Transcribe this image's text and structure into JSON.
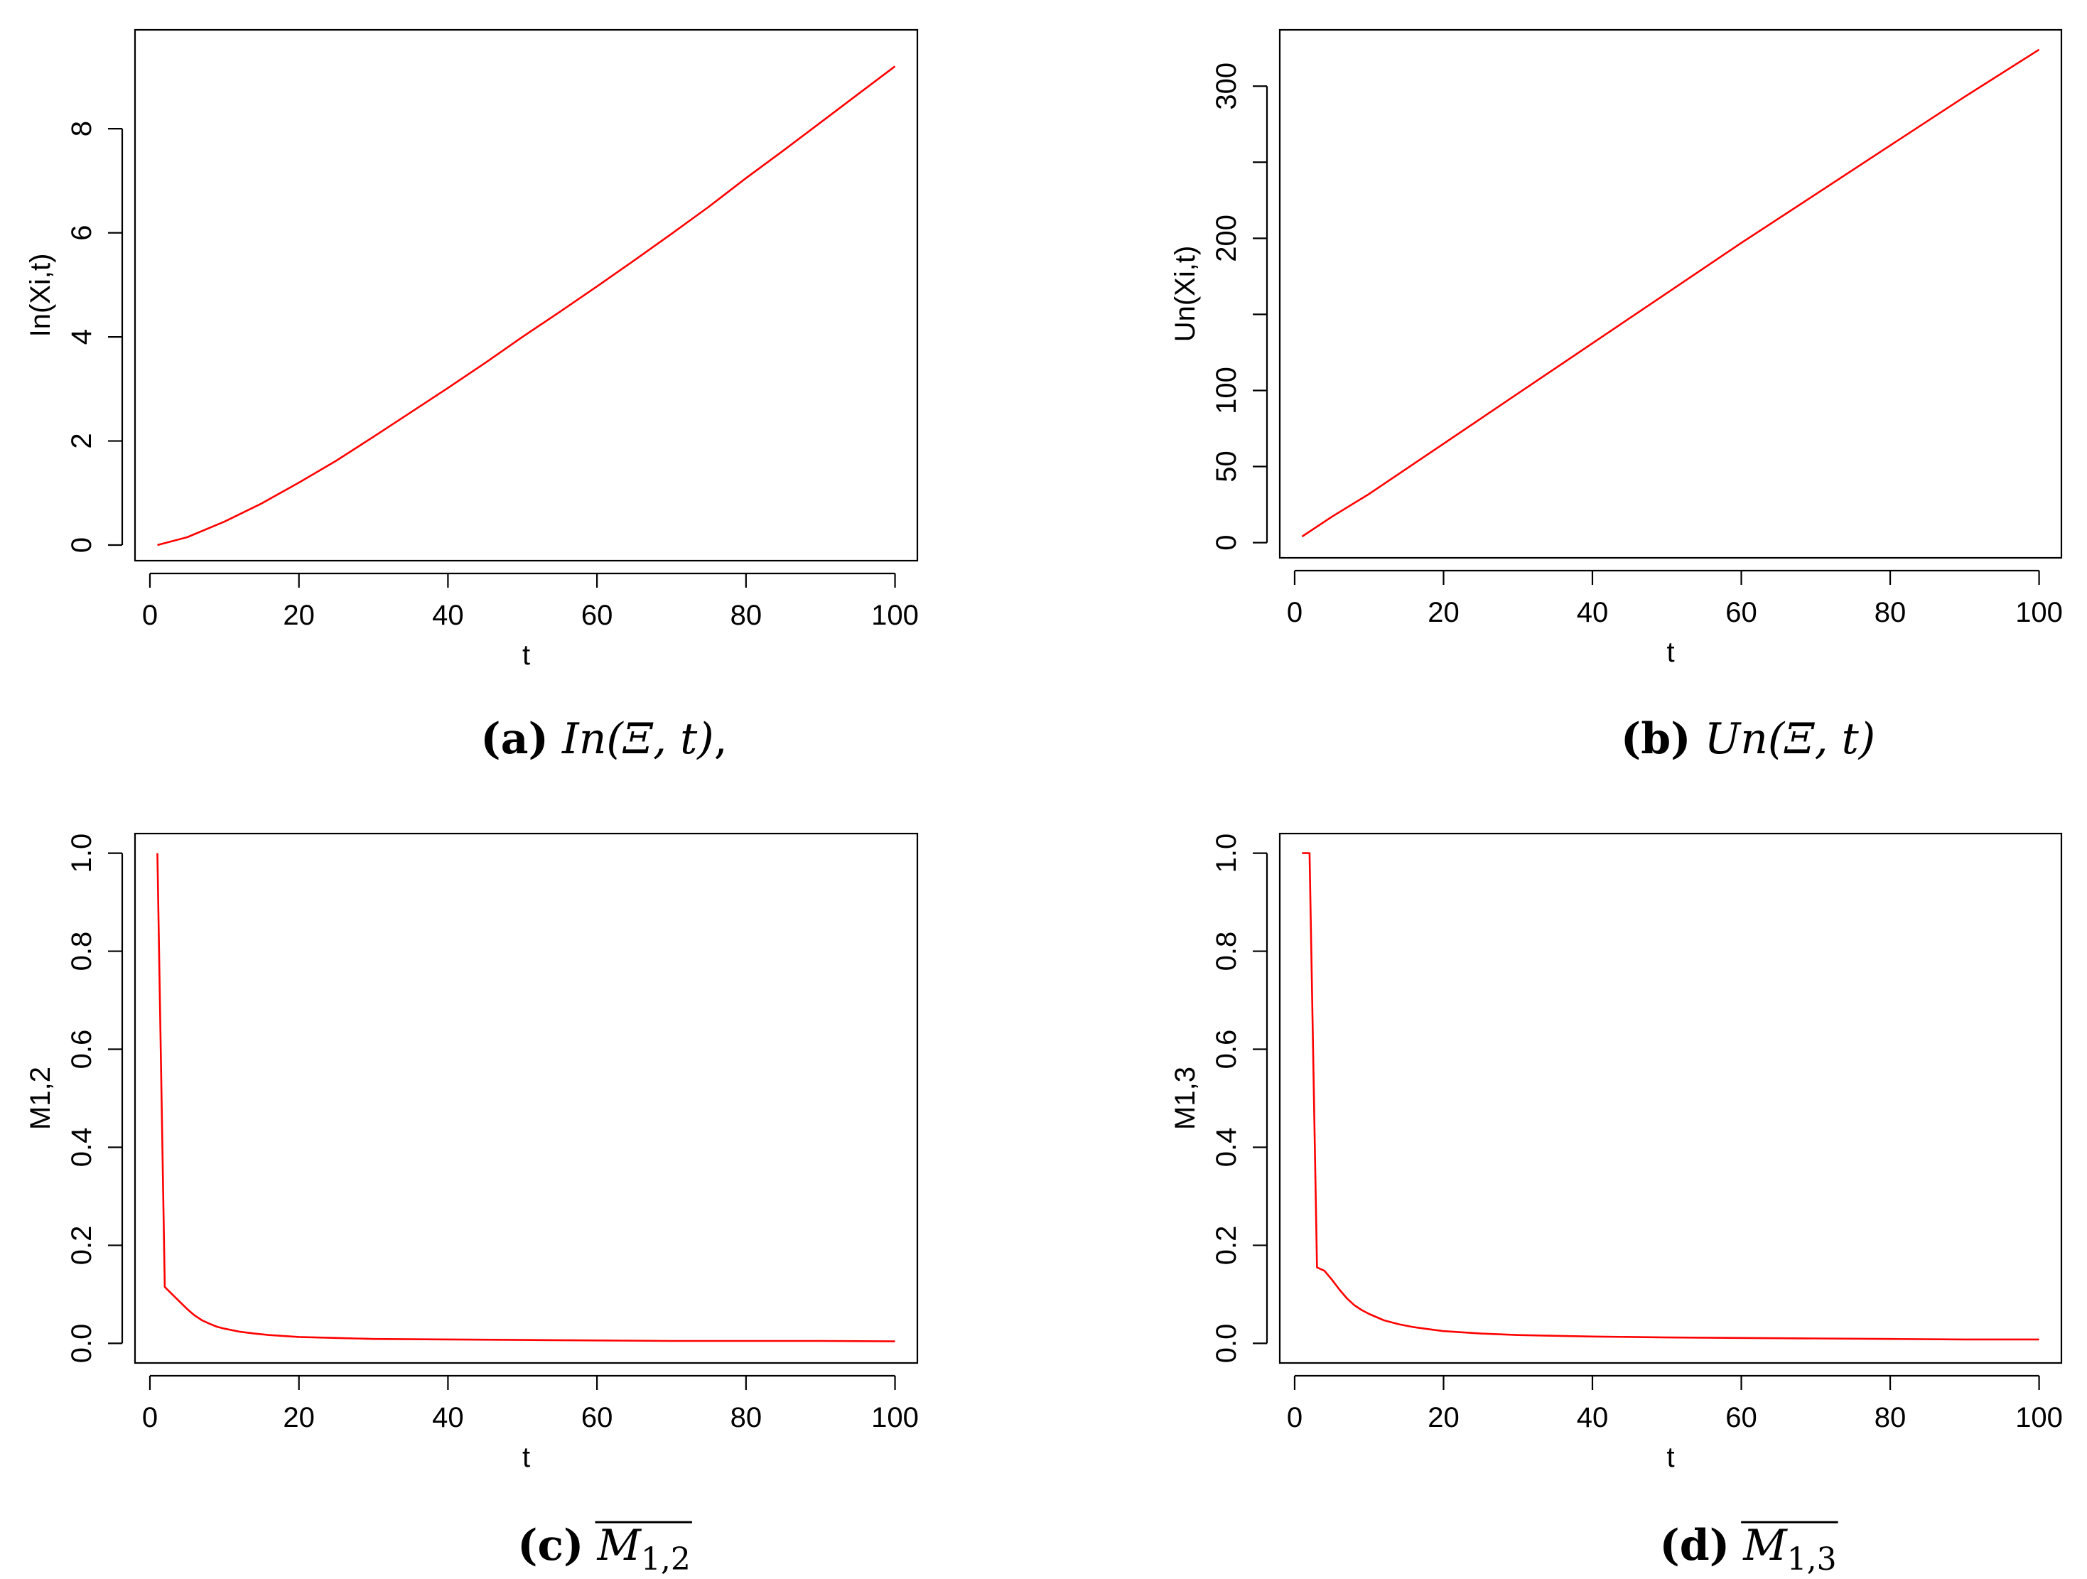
{
  "chart_data": [
    {
      "id": "a",
      "type": "line",
      "caption_label": "(a)",
      "caption_math": "In(Ξ, t)",
      "caption_suffix": ",",
      "xlabel": "t",
      "ylabel": "In(Xi,t)",
      "xlim": [
        -2,
        103
      ],
      "ylim": [
        -0.3,
        9.9
      ],
      "xticks": [
        0,
        20,
        40,
        60,
        80,
        100
      ],
      "yticks": [
        0,
        2,
        4,
        6,
        8
      ],
      "line_color": "#ff0000",
      "series": [
        {
          "x": [
            1,
            5,
            10,
            15,
            20,
            25,
            30,
            35,
            40,
            45,
            50,
            55,
            60,
            65,
            70,
            75,
            80,
            85,
            90,
            95,
            100
          ],
          "values": [
            0.0,
            0.15,
            0.45,
            0.8,
            1.2,
            1.62,
            2.08,
            2.55,
            3.02,
            3.5,
            4.0,
            4.48,
            4.97,
            5.47,
            5.98,
            6.5,
            7.05,
            7.58,
            8.12,
            8.66,
            9.2
          ]
        }
      ]
    },
    {
      "id": "b",
      "type": "line",
      "caption_label": "(b)",
      "caption_math": "Un(Ξ, t)",
      "caption_suffix": "",
      "xlabel": "t",
      "ylabel": "Un(Xi,t)",
      "xlim": [
        -2,
        103
      ],
      "ylim": [
        -10,
        337
      ],
      "xticks": [
        0,
        20,
        40,
        60,
        80,
        100
      ],
      "yticks": [
        0,
        50,
        100,
        150,
        200,
        250,
        300
      ],
      "ytick_labels": [
        "0",
        "50",
        "100",
        "",
        "200",
        "",
        "300"
      ],
      "line_color": "#ff0000",
      "series": [
        {
          "x": [
            1,
            5,
            10,
            20,
            30,
            40,
            50,
            60,
            70,
            80,
            90,
            100
          ],
          "values": [
            4,
            17,
            32,
            65,
            98,
            131,
            164,
            197,
            229,
            261,
            293,
            324
          ]
        }
      ]
    },
    {
      "id": "c",
      "type": "line",
      "caption_label": "(c)",
      "caption_math": "M",
      "caption_sub": "1,2",
      "caption_suffix": "",
      "overline": true,
      "xlabel": "t",
      "ylabel": "M1,2",
      "xlim": [
        -2,
        103
      ],
      "ylim": [
        -0.04,
        1.04
      ],
      "xticks": [
        0,
        20,
        40,
        60,
        80,
        100
      ],
      "yticks": [
        0.0,
        0.2,
        0.4,
        0.6,
        0.8,
        1.0
      ],
      "ytick_labels": [
        "0.0",
        "0.2",
        "0.4",
        "0.6",
        "0.8",
        "1.0"
      ],
      "line_color": "#ff0000",
      "series": [
        {
          "x": [
            1,
            2,
            3,
            4,
            5,
            6,
            7,
            8,
            9,
            10,
            12,
            14,
            16,
            18,
            20,
            25,
            30,
            40,
            50,
            60,
            70,
            80,
            90,
            100
          ],
          "values": [
            1.0,
            0.115,
            0.1,
            0.085,
            0.07,
            0.057,
            0.047,
            0.04,
            0.034,
            0.03,
            0.024,
            0.02,
            0.017,
            0.015,
            0.013,
            0.011,
            0.009,
            0.008,
            0.007,
            0.006,
            0.005,
            0.005,
            0.005,
            0.004
          ]
        }
      ]
    },
    {
      "id": "d",
      "type": "line",
      "caption_label": "(d)",
      "caption_math": "M",
      "caption_sub": "1,3",
      "caption_suffix": "",
      "overline": true,
      "xlabel": "t",
      "ylabel": "M1,3",
      "xlim": [
        -2,
        103
      ],
      "ylim": [
        -0.04,
        1.04
      ],
      "xticks": [
        0,
        20,
        40,
        60,
        80,
        100
      ],
      "yticks": [
        0.0,
        0.2,
        0.4,
        0.6,
        0.8,
        1.0
      ],
      "ytick_labels": [
        "0.0",
        "0.2",
        "0.4",
        "0.6",
        "0.8",
        "1.0"
      ],
      "line_color": "#ff0000",
      "series": [
        {
          "x": [
            1,
            2,
            3,
            4,
            5,
            6,
            7,
            8,
            9,
            10,
            12,
            14,
            16,
            18,
            20,
            25,
            30,
            40,
            50,
            60,
            70,
            80,
            90,
            100
          ],
          "values": [
            1.0,
            1.0,
            0.155,
            0.148,
            0.13,
            0.11,
            0.092,
            0.078,
            0.068,
            0.06,
            0.047,
            0.039,
            0.033,
            0.029,
            0.025,
            0.02,
            0.017,
            0.014,
            0.012,
            0.011,
            0.01,
            0.009,
            0.008,
            0.008
          ]
        }
      ]
    }
  ]
}
